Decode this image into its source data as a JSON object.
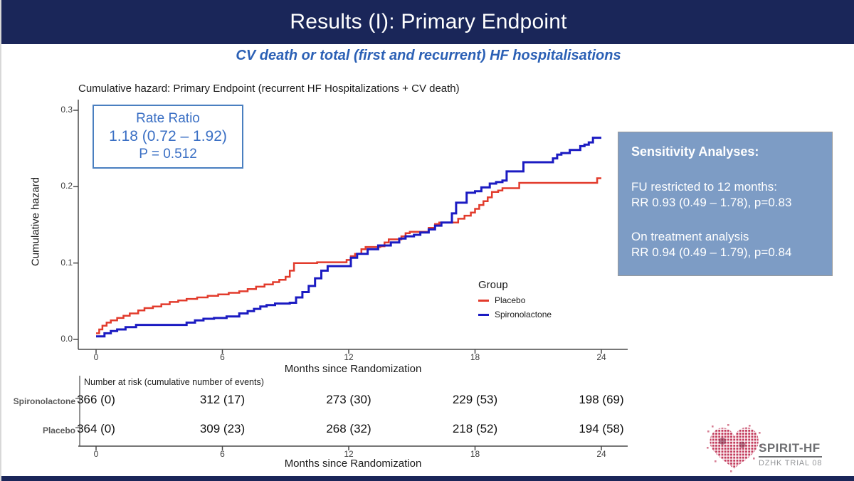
{
  "slide": {
    "title": "Results (I): Primary Endpoint",
    "subtitle": "CV death or total (first and recurrent) HF hospitalisations"
  },
  "rate_ratio_box": {
    "heading": "Rate Ratio",
    "value": "1.18 (0.72 – 1.92)",
    "p_value": "P = 0.512"
  },
  "sensitivity_box": {
    "heading": "Sensitivity Analyses:",
    "line1": "FU restricted to 12 months:",
    "line2": "RR 0.93 (0.49 – 1.78), p=0.83",
    "line3": "On treatment analysis",
    "line4": "RR 0.94 (0.49 – 1.79), p=0.84"
  },
  "chart_data": {
    "type": "line",
    "step": true,
    "title": "Cumulative hazard: Primary Endpoint (recurrent HF Hospitalizations + CV death)",
    "xlabel": "Months since Randomization",
    "ylabel": "Cumulative hazard",
    "xlim": [
      0,
      24
    ],
    "ylim": [
      0.0,
      0.3
    ],
    "x_ticks": [
      0,
      6,
      12,
      18,
      24
    ],
    "y_ticks": [
      0.0,
      0.1,
      0.2,
      0.3
    ],
    "legend_title": "Group",
    "legend_position": "inside-lower-right",
    "grid": false,
    "series": [
      {
        "name": "Placebo",
        "color": "#e23b2c",
        "points": [
          [
            0,
            0.008
          ],
          [
            0.15,
            0.013
          ],
          [
            0.3,
            0.018
          ],
          [
            0.5,
            0.022
          ],
          [
            0.7,
            0.025
          ],
          [
            1.0,
            0.028
          ],
          [
            1.3,
            0.031
          ],
          [
            1.6,
            0.034
          ],
          [
            2.0,
            0.038
          ],
          [
            2.3,
            0.041
          ],
          [
            2.7,
            0.043
          ],
          [
            3.1,
            0.046
          ],
          [
            3.5,
            0.049
          ],
          [
            3.9,
            0.051
          ],
          [
            4.3,
            0.053
          ],
          [
            4.8,
            0.055
          ],
          [
            5.3,
            0.057
          ],
          [
            5.8,
            0.059
          ],
          [
            6.3,
            0.061
          ],
          [
            6.8,
            0.063
          ],
          [
            7.2,
            0.066
          ],
          [
            7.6,
            0.069
          ],
          [
            8.0,
            0.072
          ],
          [
            8.4,
            0.075
          ],
          [
            8.7,
            0.078
          ],
          [
            9.0,
            0.082
          ],
          [
            9.2,
            0.09
          ],
          [
            9.4,
            0.1
          ],
          [
            10.5,
            0.101
          ],
          [
            11.9,
            0.104
          ],
          [
            12.1,
            0.109
          ],
          [
            12.3,
            0.112
          ],
          [
            12.6,
            0.118
          ],
          [
            12.8,
            0.121
          ],
          [
            13.5,
            0.122
          ],
          [
            13.7,
            0.127
          ],
          [
            13.9,
            0.131
          ],
          [
            14.5,
            0.135
          ],
          [
            14.7,
            0.139
          ],
          [
            14.9,
            0.141
          ],
          [
            15.8,
            0.146
          ],
          [
            16.1,
            0.151
          ],
          [
            16.3,
            0.153
          ],
          [
            17.2,
            0.158
          ],
          [
            17.5,
            0.162
          ],
          [
            17.8,
            0.166
          ],
          [
            18.0,
            0.171
          ],
          [
            18.2,
            0.176
          ],
          [
            18.4,
            0.181
          ],
          [
            18.6,
            0.186
          ],
          [
            18.8,
            0.193
          ],
          [
            19.1,
            0.195
          ],
          [
            19.3,
            0.198
          ],
          [
            20.1,
            0.205
          ],
          [
            23.8,
            0.211
          ]
        ]
      },
      {
        "name": "Spironolactone",
        "color": "#1b1bc2",
        "points": [
          [
            0,
            0.004
          ],
          [
            0.4,
            0.008
          ],
          [
            0.7,
            0.011
          ],
          [
            1.0,
            0.013
          ],
          [
            1.4,
            0.016
          ],
          [
            1.9,
            0.019
          ],
          [
            4.3,
            0.022
          ],
          [
            4.7,
            0.025
          ],
          [
            5.1,
            0.027
          ],
          [
            5.6,
            0.028
          ],
          [
            6.2,
            0.03
          ],
          [
            6.8,
            0.034
          ],
          [
            7.2,
            0.037
          ],
          [
            7.5,
            0.04
          ],
          [
            7.8,
            0.043
          ],
          [
            8.1,
            0.045
          ],
          [
            8.5,
            0.047
          ],
          [
            9.2,
            0.048
          ],
          [
            9.5,
            0.055
          ],
          [
            9.8,
            0.062
          ],
          [
            10.1,
            0.07
          ],
          [
            10.4,
            0.08
          ],
          [
            10.7,
            0.09
          ],
          [
            11.0,
            0.096
          ],
          [
            12.1,
            0.107
          ],
          [
            12.4,
            0.112
          ],
          [
            12.9,
            0.118
          ],
          [
            13.4,
            0.123
          ],
          [
            14.0,
            0.127
          ],
          [
            14.4,
            0.132
          ],
          [
            14.7,
            0.135
          ],
          [
            15.1,
            0.137
          ],
          [
            15.4,
            0.14
          ],
          [
            15.8,
            0.144
          ],
          [
            16.1,
            0.149
          ],
          [
            16.4,
            0.153
          ],
          [
            16.9,
            0.165
          ],
          [
            17.1,
            0.179
          ],
          [
            17.6,
            0.192
          ],
          [
            18.0,
            0.194
          ],
          [
            18.3,
            0.199
          ],
          [
            18.7,
            0.204
          ],
          [
            19.0,
            0.206
          ],
          [
            19.3,
            0.208
          ],
          [
            19.5,
            0.22
          ],
          [
            20.3,
            0.232
          ],
          [
            21.7,
            0.237
          ],
          [
            21.9,
            0.242
          ],
          [
            22.1,
            0.244
          ],
          [
            22.5,
            0.248
          ],
          [
            23.0,
            0.253
          ],
          [
            23.2,
            0.255
          ],
          [
            23.4,
            0.258
          ],
          [
            23.6,
            0.264
          ]
        ]
      }
    ],
    "annotation_box": "Rate Ratio 1.18 (0.72 – 1.92) P = 0.512"
  },
  "risk_table": {
    "header": "Number at risk (cumulative number of events)",
    "xlabel": "Months since Randomization",
    "x_ticks": [
      "0",
      "6",
      "12",
      "18",
      "24"
    ],
    "rows": [
      {
        "label": "Spironolactone",
        "values": [
          "366 (0)",
          "312 (17)",
          "273 (30)",
          "229 (53)",
          "198 (69)"
        ]
      },
      {
        "label": "Placebo",
        "values": [
          "364 (0)",
          "309 (23)",
          "268 (32)",
          "218 (52)",
          "194 (58)"
        ]
      }
    ]
  },
  "logo": {
    "name": "SPIRIT-HF",
    "sub": "DZHK TRIAL 08"
  },
  "colors": {
    "header_bg": "#1a2659",
    "subtitle_blue": "#2b60b5",
    "rate_box_border": "#4a7fc0",
    "rate_box_text": "#3a6fc4",
    "sensitivity_bg": "#7d9cc5",
    "placebo_red": "#e23b2c",
    "spironolactone_blue": "#1b1bc2",
    "axis_gray": "#4a4a4a",
    "logo_heart": "#c23b5c"
  }
}
